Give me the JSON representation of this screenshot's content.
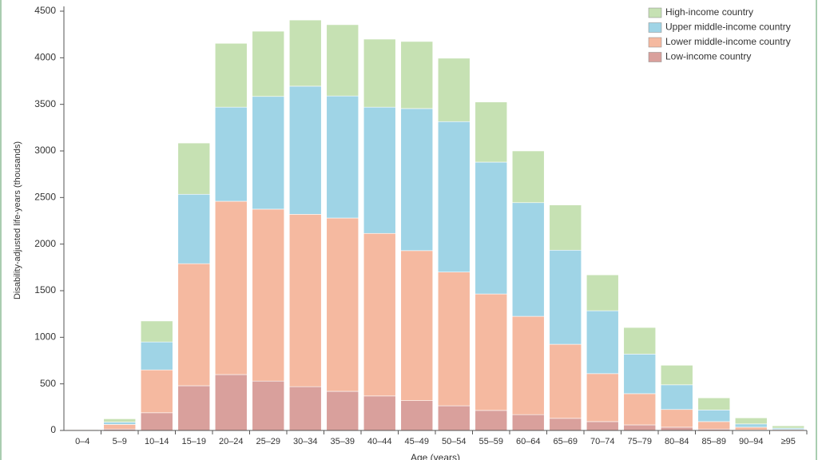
{
  "chart_data": {
    "type": "stacked_bar",
    "y_label": "Disability-adjusted life-years (thousands)",
    "x_label": "Age (years)",
    "categories": [
      "0–4",
      "5–9",
      "10–14",
      "15–19",
      "20–24",
      "25–29",
      "30–34",
      "35–39",
      "40–44",
      "45–49",
      "50–54",
      "55–59",
      "60–64",
      "65–69",
      "70–74",
      "75–79",
      "80–84",
      "85–89",
      "90–94",
      "≥95"
    ],
    "series": [
      {
        "name": "Low-income country",
        "color": "#d9a09c",
        "values": [
          3,
          15,
          190,
          480,
          600,
          530,
          470,
          420,
          370,
          320,
          265,
          215,
          170,
          130,
          95,
          60,
          35,
          15,
          5,
          2
        ]
      },
      {
        "name": "Lower middle-income country",
        "color": "#f5b9a0",
        "values": [
          6,
          50,
          460,
          1310,
          1860,
          1845,
          1850,
          1860,
          1745,
          1610,
          1435,
          1250,
          1055,
          795,
          515,
          335,
          190,
          80,
          30,
          8
        ]
      },
      {
        "name": "Upper middle-income country",
        "color": "#9fd4e6",
        "values": [
          3,
          25,
          300,
          745,
          1010,
          1210,
          1375,
          1310,
          1355,
          1525,
          1615,
          1415,
          1220,
          1010,
          675,
          425,
          265,
          125,
          35,
          15
        ]
      },
      {
        "name": "High-income country",
        "color": "#c6e1b3",
        "values": [
          3,
          35,
          225,
          550,
          685,
          700,
          710,
          765,
          730,
          720,
          680,
          645,
          555,
          485,
          385,
          285,
          210,
          130,
          65,
          25
        ]
      }
    ],
    "ylim": [
      0,
      4500
    ],
    "yticks": [
      0,
      500,
      1000,
      1500,
      2000,
      2500,
      3000,
      3500,
      4000,
      4500
    ],
    "legend": "top-right"
  }
}
